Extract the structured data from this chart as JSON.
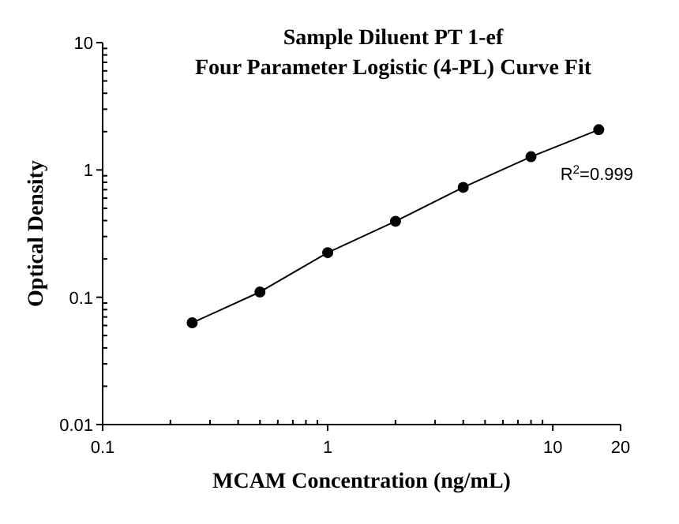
{
  "chart_data": {
    "type": "line",
    "title": "Sample Diluent PT 1-ef\nFour Parameter Logistic (4-PL) Curve Fit",
    "xlabel": "MCAM Concentration (ng/mL)",
    "ylabel": "Optical Density",
    "log": "xy",
    "marker": "circle",
    "line_style": "solid",
    "grid": false,
    "x": [
      0.25,
      0.5,
      1,
      2,
      4,
      8,
      16
    ],
    "series": [
      {
        "color": "#000000",
        "values": [
          0.063,
          0.11,
          0.224,
          0.395,
          0.73,
          1.27,
          2.07
        ]
      }
    ],
    "xlim": [
      0.1,
      20
    ],
    "xticks": [
      0.1,
      {
        "value": 0.2,
        "label": null
      },
      {
        "value": 0.3,
        "label": null
      },
      {
        "value": 0.4,
        "label": null
      },
      {
        "value": 0.5,
        "label": null
      },
      {
        "value": 0.6,
        "label": null
      },
      {
        "value": 0.7,
        "label": null
      },
      {
        "value": 0.8,
        "label": null
      },
      {
        "value": 0.9,
        "label": null
      },
      1,
      {
        "value": 2,
        "label": null
      },
      {
        "value": 3,
        "label": null
      },
      {
        "value": 4,
        "label": null
      },
      {
        "value": 5,
        "label": null
      },
      {
        "value": 6,
        "label": null
      },
      {
        "value": 7,
        "label": null
      },
      {
        "value": 8,
        "label": null
      },
      {
        "value": 9,
        "label": null
      },
      10,
      20
    ],
    "ylim": [
      0.01,
      10
    ],
    "yticks": [
      0.01,
      {
        "value": 0.02,
        "label": null
      },
      {
        "value": 0.03,
        "label": null
      },
      {
        "value": 0.04,
        "label": null
      },
      {
        "value": 0.05,
        "label": null
      },
      {
        "value": 0.06,
        "label": null
      },
      {
        "value": 0.07,
        "label": null
      },
      {
        "value": 0.08,
        "label": null
      },
      {
        "value": 0.09,
        "label": null
      },
      0.1,
      {
        "value": 0.2,
        "label": null
      },
      {
        "value": 0.3,
        "label": null
      },
      {
        "value": 0.4,
        "label": null
      },
      {
        "value": 0.5,
        "label": null
      },
      {
        "value": 0.6,
        "label": null
      },
      {
        "value": 0.7,
        "label": null
      },
      {
        "value": 0.8,
        "label": null
      },
      {
        "value": 0.9,
        "label": null
      },
      1,
      {
        "value": 2,
        "label": null
      },
      {
        "value": 3,
        "label": null
      },
      {
        "value": 4,
        "label": null
      },
      {
        "value": 5,
        "label": null
      },
      {
        "value": 6,
        "label": null
      },
      {
        "value": 7,
        "label": null
      },
      {
        "value": 8,
        "label": null
      },
      {
        "value": 9,
        "label": null
      },
      10
    ],
    "annotations": [
      "R$^{2}$=0.999"
    ]
  }
}
